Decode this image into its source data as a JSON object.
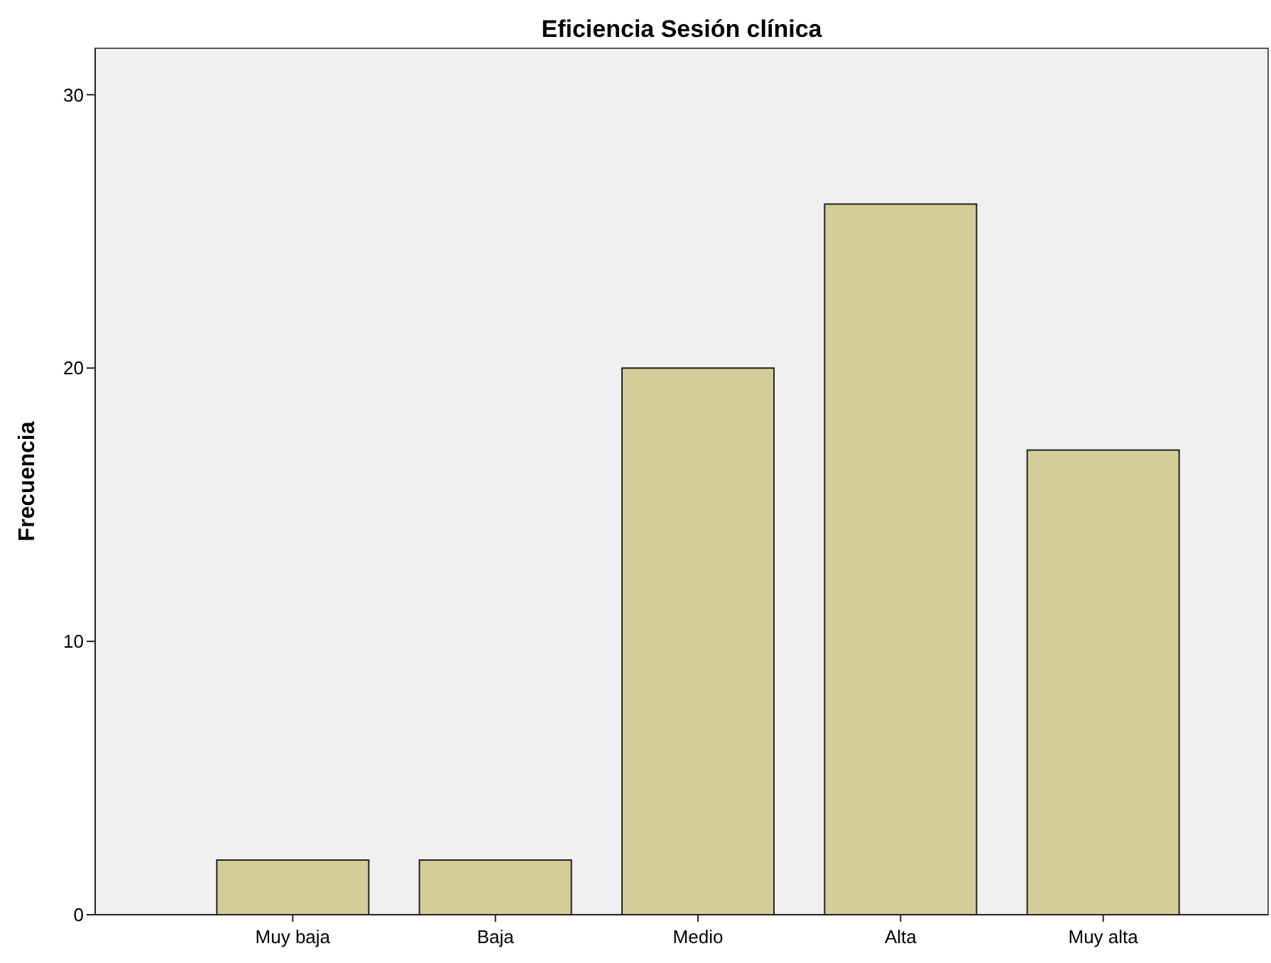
{
  "chart_data": {
    "type": "bar",
    "title": "Eficiencia Sesión clínica",
    "ylabel": "Frecuencia",
    "categories": [
      "Muy baja",
      "Baja",
      "Medio",
      "Alta",
      "Muy alta"
    ],
    "values": [
      2,
      2,
      20,
      26,
      17
    ],
    "color": "#d3ce97",
    "ylim": [
      0,
      31.7
    ],
    "yticks": [
      0,
      10,
      20,
      30
    ],
    "grid": false
  }
}
